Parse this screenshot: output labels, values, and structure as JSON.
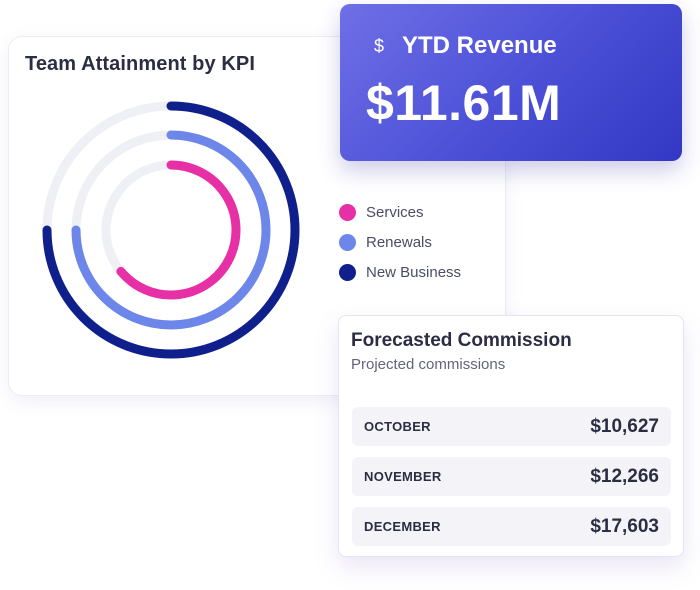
{
  "kpi_card": {
    "title": "Team Attainment by KPI",
    "legend": [
      {
        "label": "Services",
        "color": "#e72fa6"
      },
      {
        "label": "Renewals",
        "color": "#6d86ea"
      },
      {
        "label": "New Business",
        "color": "#0f1f8c"
      }
    ],
    "track_color": "#eef0f5"
  },
  "chart_data": {
    "type": "radial-bar",
    "series": [
      {
        "name": "Services",
        "value": 0.64
      },
      {
        "name": "Renewals",
        "value": 0.75
      },
      {
        "name": "New Business",
        "value": 0.75
      }
    ],
    "legend_position": "right"
  },
  "ytd_card": {
    "icon": "dollar-icon",
    "icon_glyph": "$",
    "label": "YTD Revenue",
    "value": "$11.61M"
  },
  "forecast_card": {
    "title": "Forecasted Commission",
    "subtitle": "Projected commissions",
    "rows": [
      {
        "month": "OCTOBER",
        "amount": "$10,627"
      },
      {
        "month": "NOVEMBER",
        "amount": "$12,266"
      },
      {
        "month": "DECEMBER",
        "amount": "$17,603"
      }
    ]
  }
}
